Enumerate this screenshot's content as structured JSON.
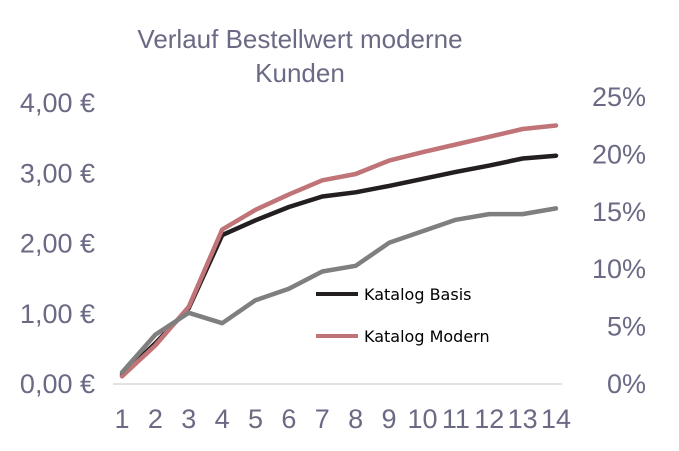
{
  "chart_data": {
    "type": "line",
    "title_lines": [
      "Verlauf Bestellwert moderne",
      "Kunden"
    ],
    "x": [
      1,
      2,
      3,
      4,
      5,
      6,
      7,
      8,
      9,
      10,
      11,
      12,
      13,
      14
    ],
    "x_tick_labels": [
      "1",
      "2",
      "3",
      "4",
      "5",
      "6",
      "7",
      "8",
      "9",
      "10",
      "11",
      "12",
      "13",
      "14"
    ],
    "y_left": {
      "range": [
        0,
        4.2
      ],
      "ticks": [
        0,
        1,
        2,
        3,
        4
      ],
      "tick_labels": [
        "0,00 €",
        "1,00 €",
        "2,00 €",
        "3,00 €",
        "4,00 €"
      ]
    },
    "y_right": {
      "range": [
        0,
        0.25
      ],
      "ticks": [
        0,
        0.05,
        0.1,
        0.15,
        0.2,
        0.25
      ],
      "tick_labels": [
        "0%",
        "5%",
        "10%",
        "15%",
        "20%",
        "25%"
      ]
    },
    "series": [
      {
        "name": "Katalog Basis",
        "axis": "left",
        "color": "#231f20",
        "values": [
          0.13,
          0.58,
          1.08,
          2.12,
          2.33,
          2.52,
          2.67,
          2.73,
          2.82,
          2.92,
          3.02,
          3.11,
          3.21,
          3.25
        ]
      },
      {
        "name": "Katalog Modern",
        "axis": "left",
        "color": "#c07478",
        "values": [
          0.11,
          0.55,
          1.1,
          2.2,
          2.48,
          2.7,
          2.9,
          2.99,
          3.18,
          3.3,
          3.41,
          3.52,
          3.63,
          3.68
        ]
      },
      {
        "name": "",
        "axis": "right",
        "color": "#7f7f7f",
        "values": [
          0.01,
          0.043,
          0.062,
          0.053,
          0.073,
          0.083,
          0.098,
          0.103,
          0.123,
          0.133,
          0.143,
          0.148,
          0.148,
          0.153
        ]
      }
    ],
    "legend": [
      "Katalog Basis",
      "Katalog Modern"
    ],
    "legend_placement": "center-right",
    "grid": false
  }
}
